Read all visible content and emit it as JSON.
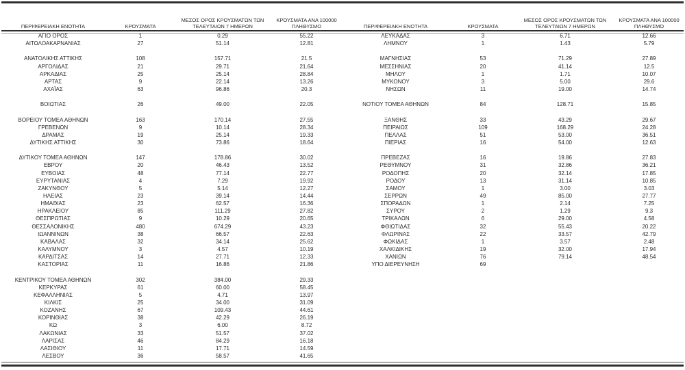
{
  "columns": [
    "ΠΕΡΙΦΕΡΕΙΑΚΗ ΕΝΟΤΗΤΑ",
    "ΚΡΟΥΣΜΑΤΑ",
    "ΜΕΣΟΣ ΟΡΟΣ ΚΡΟΥΣΜΑΤΩΝ ΤΩΝ ΤΕΛΕΥΤΑΙΩΝ 7 ΗΜΕΡΩΝ",
    "ΚΡΟΥΣΜΑΤΑ ΑΝΑ 100000 ΠΛΗΘΥΣΜΟ"
  ],
  "colors": {
    "text": "#2a2a2a",
    "rule": "#2e2e2e",
    "subrule": "#9a9a9a",
    "background": "#ffffff"
  },
  "tables": [
    {
      "side": "left",
      "rows": [
        {
          "name": "ΑΓΙΟ ΟΡΟΣ",
          "cases": "1",
          "avg7": "0.29",
          "per100k": "55.22"
        },
        {
          "name": "ΑΙΤΩΛΟΑΚΑΡΝΑΝΙΑΣ",
          "cases": "27",
          "avg7": "51.14",
          "per100k": "12.81"
        },
        {
          "spacer": true
        },
        {
          "name": "ΑΝΑΤΟΛΙΚΗΣ ΑΤΤΙΚΗΣ",
          "cases": "108",
          "avg7": "157.71",
          "per100k": "21.5"
        },
        {
          "name": "ΑΡΓΟΛΙΔΑΣ",
          "cases": "21",
          "avg7": "29.71",
          "per100k": "21.64"
        },
        {
          "name": "ΑΡΚΑΔΙΑΣ",
          "cases": "25",
          "avg7": "25.14",
          "per100k": "28.84"
        },
        {
          "name": "ΑΡΤΑΣ",
          "cases": "9",
          "avg7": "22.14",
          "per100k": "13.26"
        },
        {
          "name": "ΑΧΑΪΑΣ",
          "cases": "63",
          "avg7": "96.86",
          "per100k": "20.3"
        },
        {
          "spacer": true
        },
        {
          "name": "ΒΟΙΩΤΙΑΣ",
          "cases": "26",
          "avg7": "49.00",
          "per100k": "22.05"
        },
        {
          "spacer": true
        },
        {
          "name": "ΒΟΡΕΙΟΥ ΤΟΜΕΑ ΑΘΗΝΩΝ",
          "cases": "163",
          "avg7": "170.14",
          "per100k": "27.55"
        },
        {
          "name": "ΓΡΕΒΕΝΩΝ",
          "cases": "9",
          "avg7": "10.14",
          "per100k": "28.34"
        },
        {
          "name": "ΔΡΑΜΑΣ",
          "cases": "19",
          "avg7": "25.14",
          "per100k": "19.33"
        },
        {
          "name": "ΔΥΤΙΚΗΣ ΑΤΤΙΚΗΣ",
          "cases": "30",
          "avg7": "73.86",
          "per100k": "18.64"
        },
        {
          "spacer": true
        },
        {
          "name": "ΔΥΤΙΚΟΥ ΤΟΜΕΑ ΑΘΗΝΩΝ",
          "cases": "147",
          "avg7": "178.86",
          "per100k": "30.02"
        },
        {
          "name": "ΕΒΡΟΥ",
          "cases": "20",
          "avg7": "46.43",
          "per100k": "13.52"
        },
        {
          "name": "ΕΥΒΟΙΑΣ",
          "cases": "48",
          "avg7": "77.14",
          "per100k": "22.77"
        },
        {
          "name": "ΕΥΡΥΤΑΝΙΑΣ",
          "cases": "4",
          "avg7": "7.29",
          "per100k": "19.92"
        },
        {
          "name": "ΖΑΚΥΝΘΟΥ",
          "cases": "5",
          "avg7": "5.14",
          "per100k": "12.27"
        },
        {
          "name": "ΗΛΕΙΑΣ",
          "cases": "23",
          "avg7": "39.14",
          "per100k": "14.44"
        },
        {
          "name": "ΗΜΑΘΙΑΣ",
          "cases": "23",
          "avg7": "62.57",
          "per100k": "16.36"
        },
        {
          "name": "ΗΡΑΚΛΕΙΟΥ",
          "cases": "85",
          "avg7": "111.29",
          "per100k": "27.82"
        },
        {
          "name": "ΘΕΣΠΡΩΤΙΑΣ",
          "cases": "9",
          "avg7": "10.29",
          "per100k": "20.65"
        },
        {
          "name": "ΘΕΣΣΑΛΟΝΙΚΗΣ",
          "cases": "480",
          "avg7": "674.29",
          "per100k": "43.23"
        },
        {
          "name": "ΙΩΑΝΝΙΝΩΝ",
          "cases": "38",
          "avg7": "66.57",
          "per100k": "22.63"
        },
        {
          "name": "ΚΑΒΑΛΑΣ",
          "cases": "32",
          "avg7": "34.14",
          "per100k": "25.62"
        },
        {
          "name": "ΚΑΛΥΜΝΟΥ",
          "cases": "3",
          "avg7": "4.57",
          "per100k": "10.19"
        },
        {
          "name": "ΚΑΡΔΙΤΣΑΣ",
          "cases": "14",
          "avg7": "27.71",
          "per100k": "12.33"
        },
        {
          "name": "ΚΑΣΤΟΡΙΑΣ",
          "cases": "11",
          "avg7": "16.86",
          "per100k": "21.86"
        },
        {
          "spacer": true
        },
        {
          "name": "ΚΕΝΤΡΙΚΟΥ ΤΟΜΕΑ ΑΘΗΝΩΝ",
          "cases": "302",
          "avg7": "384.00",
          "per100k": "29.33"
        },
        {
          "name": "ΚΕΡΚΥΡΑΣ",
          "cases": "61",
          "avg7": "60.00",
          "per100k": "58.45"
        },
        {
          "name": "ΚΕΦΑΛΛΗΝΙΑΣ",
          "cases": "5",
          "avg7": "4.71",
          "per100k": "13.97"
        },
        {
          "name": "ΚΙΛΚΙΣ",
          "cases": "25",
          "avg7": "34.00",
          "per100k": "31.09"
        },
        {
          "name": "ΚΟΖΑΝΗΣ",
          "cases": "67",
          "avg7": "109.43",
          "per100k": "44.61"
        },
        {
          "name": "ΚΟΡΙΝΘΙΑΣ",
          "cases": "38",
          "avg7": "42.29",
          "per100k": "26.19"
        },
        {
          "name": "ΚΩ",
          "cases": "3",
          "avg7": "6.00",
          "per100k": "8.72"
        },
        {
          "name": "ΛΑΚΩΝΙΑΣ",
          "cases": "33",
          "avg7": "51.57",
          "per100k": "37.02"
        },
        {
          "name": "ΛΑΡΙΣΑΣ",
          "cases": "46",
          "avg7": "84.29",
          "per100k": "16.18"
        },
        {
          "name": "ΛΑΣΙΘΙΟΥ",
          "cases": "11",
          "avg7": "17.71",
          "per100k": "14.59"
        },
        {
          "name": "ΛΕΣΒΟΥ",
          "cases": "36",
          "avg7": "58.57",
          "per100k": "41.65"
        }
      ]
    },
    {
      "side": "right",
      "rows": [
        {
          "name": "ΛΕΥΚΑΔΑΣ",
          "cases": "3",
          "avg7": "6.71",
          "per100k": "12.66"
        },
        {
          "name": "ΛΗΜΝΟΥ",
          "cases": "1",
          "avg7": "1.43",
          "per100k": "5.79"
        },
        {
          "spacer": true
        },
        {
          "name": "ΜΑΓΝΗΣΙΑΣ",
          "cases": "53",
          "avg7": "71.29",
          "per100k": "27.89"
        },
        {
          "name": "ΜΕΣΣΗΝΙΑΣ",
          "cases": "20",
          "avg7": "41.14",
          "per100k": "12.5"
        },
        {
          "name": "ΜΗΛΟΥ",
          "cases": "1",
          "avg7": "1.71",
          "per100k": "10.07"
        },
        {
          "name": "ΜΥΚΟΝΟΥ",
          "cases": "3",
          "avg7": "5.00",
          "per100k": "29.6"
        },
        {
          "name": "ΝΗΣΩΝ",
          "cases": "11",
          "avg7": "19.00",
          "per100k": "14.74"
        },
        {
          "spacer": true
        },
        {
          "name": "ΝΟΤΙΟΥ ΤΟΜΕΑ ΑΘΗΝΩΝ",
          "cases": "84",
          "avg7": "128.71",
          "per100k": "15.85"
        },
        {
          "spacer": true
        },
        {
          "name": "ΞΑΝΘΗΣ",
          "cases": "33",
          "avg7": "43.29",
          "per100k": "29.67"
        },
        {
          "name": "ΠΕΙΡΑΙΩΣ",
          "cases": "109",
          "avg7": "168.29",
          "per100k": "24.28"
        },
        {
          "name": "ΠΕΛΛΑΣ",
          "cases": "51",
          "avg7": "53.00",
          "per100k": "36.51"
        },
        {
          "name": "ΠΙΕΡΙΑΣ",
          "cases": "16",
          "avg7": "54.00",
          "per100k": "12.63"
        },
        {
          "spacer": true
        },
        {
          "name": "ΠΡΕΒΕΖΑΣ",
          "cases": "16",
          "avg7": "19.86",
          "per100k": "27.83"
        },
        {
          "name": "ΡΕΘΥΜΝΟΥ",
          "cases": "31",
          "avg7": "32.86",
          "per100k": "36.21"
        },
        {
          "name": "ΡΟΔΟΠΗΣ",
          "cases": "20",
          "avg7": "32.14",
          "per100k": "17.85"
        },
        {
          "name": "ΡΟΔΟΥ",
          "cases": "13",
          "avg7": "31.14",
          "per100k": "10.85"
        },
        {
          "name": "ΣΑΜΟΥ",
          "cases": "1",
          "avg7": "3.00",
          "per100k": "3.03"
        },
        {
          "name": "ΣΕΡΡΩΝ",
          "cases": "49",
          "avg7": "85.00",
          "per100k": "27.77"
        },
        {
          "name": "ΣΠΟΡΑΔΩΝ",
          "cases": "1",
          "avg7": "2.14",
          "per100k": "7.25"
        },
        {
          "name": "ΣΥΡΟΥ",
          "cases": "2",
          "avg7": "1.29",
          "per100k": "9.3"
        },
        {
          "name": "ΤΡΙΚΑΛΩΝ",
          "cases": "6",
          "avg7": "29.00",
          "per100k": "4.58"
        },
        {
          "name": "ΦΘΙΩΤΙΔΑΣ",
          "cases": "32",
          "avg7": "55.43",
          "per100k": "20.22"
        },
        {
          "name": "ΦΛΩΡΙΝΑΣ",
          "cases": "22",
          "avg7": "33.57",
          "per100k": "42.79"
        },
        {
          "name": "ΦΩΚΙΔΑΣ",
          "cases": "1",
          "avg7": "3.57",
          "per100k": "2.48"
        },
        {
          "name": "ΧΑΛΚΙΔΙΚΗΣ",
          "cases": "19",
          "avg7": "32.00",
          "per100k": "17.94"
        },
        {
          "name": "ΧΑΝΙΩΝ",
          "cases": "76",
          "avg7": "79.14",
          "per100k": "48.54"
        },
        {
          "name": "ΥΠΟ ΔΙΕΡΕΥΝΗΣΗ",
          "cases": "69",
          "avg7": "",
          "per100k": ""
        }
      ]
    }
  ]
}
